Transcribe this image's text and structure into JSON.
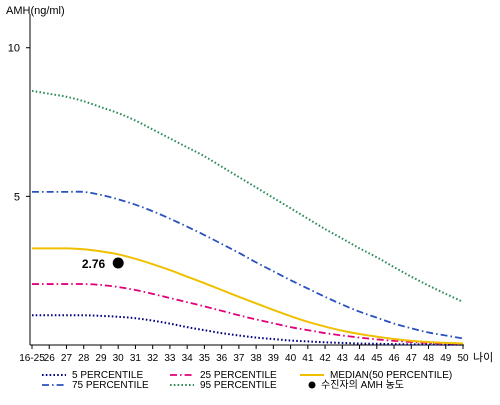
{
  "chart_data": {
    "type": "line",
    "ylabel": "AMH(ng/ml)",
    "xlabel": "나이",
    "categories": [
      "16-25",
      "26",
      "27",
      "28",
      "29",
      "30",
      "31",
      "32",
      "33",
      "34",
      "35",
      "36",
      "37",
      "38",
      "39",
      "40",
      "41",
      "42",
      "43",
      "44",
      "45",
      "46",
      "47",
      "48",
      "49",
      "50"
    ],
    "ylim": [
      0,
      11
    ],
    "y_ticks": [
      5,
      10
    ],
    "y_tick_labels": [
      "5",
      "10"
    ],
    "grid": false,
    "legend_position": "bottom",
    "series": [
      {
        "name": "5 PERCENTILE",
        "color": "#000080",
        "dash": "dotted",
        "values": [
          1.0,
          1.0,
          1.0,
          1.0,
          0.98,
          0.95,
          0.9,
          0.82,
          0.72,
          0.6,
          0.5,
          0.4,
          0.32,
          0.25,
          0.2,
          0.15,
          0.12,
          0.09,
          0.07,
          0.05,
          0.04,
          0.03,
          0.02,
          0.02,
          0.01,
          0.01
        ]
      },
      {
        "name": "25 PERCENTILE",
        "color": "#e0007a",
        "dash": "dashdot",
        "values": [
          2.05,
          2.05,
          2.05,
          2.05,
          2.02,
          1.95,
          1.85,
          1.72,
          1.58,
          1.44,
          1.3,
          1.15,
          1.0,
          0.86,
          0.73,
          0.6,
          0.5,
          0.4,
          0.32,
          0.25,
          0.19,
          0.14,
          0.1,
          0.07,
          0.05,
          0.04
        ]
      },
      {
        "name": "MEDIAN(50 PERCENTILE)",
        "color": "#f0c000",
        "dash": "solid",
        "values": [
          3.25,
          3.25,
          3.25,
          3.22,
          3.15,
          3.05,
          2.9,
          2.72,
          2.52,
          2.3,
          2.08,
          1.85,
          1.62,
          1.4,
          1.18,
          0.97,
          0.78,
          0.62,
          0.48,
          0.37,
          0.28,
          0.2,
          0.14,
          0.1,
          0.07,
          0.05
        ]
      },
      {
        "name": "75 PERCENTILE",
        "color": "#2a52be",
        "dash": "dashdot",
        "values": [
          5.15,
          5.15,
          5.15,
          5.15,
          5.05,
          4.9,
          4.72,
          4.5,
          4.25,
          3.98,
          3.7,
          3.4,
          3.1,
          2.78,
          2.48,
          2.18,
          1.9,
          1.62,
          1.36,
          1.12,
          0.92,
          0.72,
          0.56,
          0.42,
          0.32,
          0.22
        ]
      },
      {
        "name": "95 PERCENTILE",
        "color": "#2e8b57",
        "dash": "dotted",
        "values": [
          8.55,
          8.45,
          8.35,
          8.2,
          8.0,
          7.8,
          7.55,
          7.25,
          6.95,
          6.65,
          6.35,
          6.0,
          5.65,
          5.3,
          4.95,
          4.6,
          4.25,
          3.9,
          3.58,
          3.25,
          2.95,
          2.62,
          2.3,
          2.0,
          1.72,
          1.45
        ]
      }
    ],
    "marker": {
      "name": "수진자의 AMH 농도",
      "x": "30",
      "value": 2.76,
      "label": "2.76",
      "color": "#000000"
    }
  }
}
